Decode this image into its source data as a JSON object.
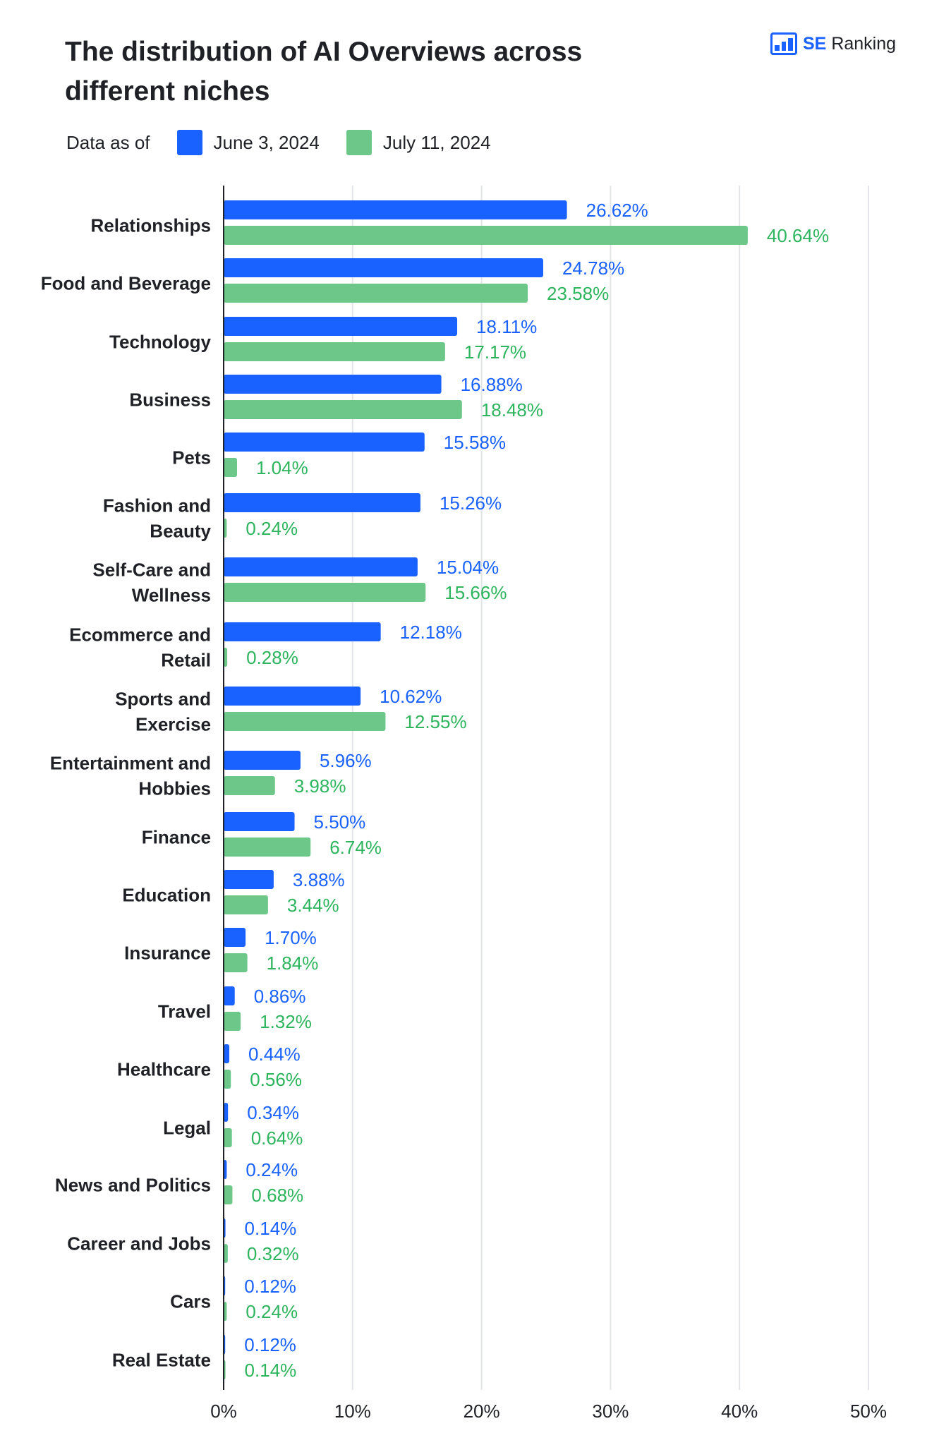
{
  "header": {
    "title": "The distribution of AI Overviews across different niches",
    "logo": {
      "se": "SE",
      "ranking": "Ranking"
    }
  },
  "legend": {
    "label": "Data as of",
    "items": [
      {
        "name": "June 3, 2024",
        "color": "#1a62ff"
      },
      {
        "name": "July 11, 2024",
        "color": "#6cc788"
      }
    ]
  },
  "chart_data": {
    "type": "bar",
    "orientation": "horizontal",
    "title": "The distribution of AI Overviews across different niches",
    "categories": [
      [
        "Relationships"
      ],
      [
        "Food and Beverage"
      ],
      [
        "Technology"
      ],
      [
        "Business"
      ],
      [
        "Pets"
      ],
      [
        "Fashion and",
        "Beauty"
      ],
      [
        "Self-Care and",
        "Wellness"
      ],
      [
        "Ecommerce and",
        "Retail"
      ],
      [
        "Sports and",
        "Exercise"
      ],
      [
        "Entertainment and",
        "Hobbies"
      ],
      [
        "Finance"
      ],
      [
        "Education"
      ],
      [
        "Insurance"
      ],
      [
        "Travel"
      ],
      [
        "Healthcare"
      ],
      [
        "Legal"
      ],
      [
        "News and Politics"
      ],
      [
        "Career and Jobs"
      ],
      [
        "Cars"
      ],
      [
        "Real Estate"
      ]
    ],
    "series": [
      {
        "name": "June 3, 2024",
        "color": "#1a62ff",
        "label_color": "#1a62ff",
        "values": [
          26.62,
          24.78,
          18.11,
          16.88,
          15.58,
          15.26,
          15.04,
          12.18,
          10.62,
          5.96,
          5.5,
          3.88,
          1.7,
          0.86,
          0.44,
          0.34,
          0.24,
          0.14,
          0.12,
          0.12
        ]
      },
      {
        "name": "July 11, 2024",
        "color": "#6cc788",
        "label_color": "#2db55d",
        "values": [
          40.64,
          23.58,
          17.17,
          18.48,
          1.04,
          0.24,
          15.66,
          0.28,
          12.55,
          3.98,
          6.74,
          3.44,
          1.84,
          1.32,
          0.56,
          0.64,
          0.68,
          0.32,
          0.24,
          0.14
        ]
      }
    ],
    "xlim": [
      0,
      50
    ],
    "xticks": [
      "0%",
      "10%",
      "20%",
      "30%",
      "40%",
      "50%"
    ],
    "grid": true,
    "legend": "top-left",
    "value_format": "%"
  }
}
